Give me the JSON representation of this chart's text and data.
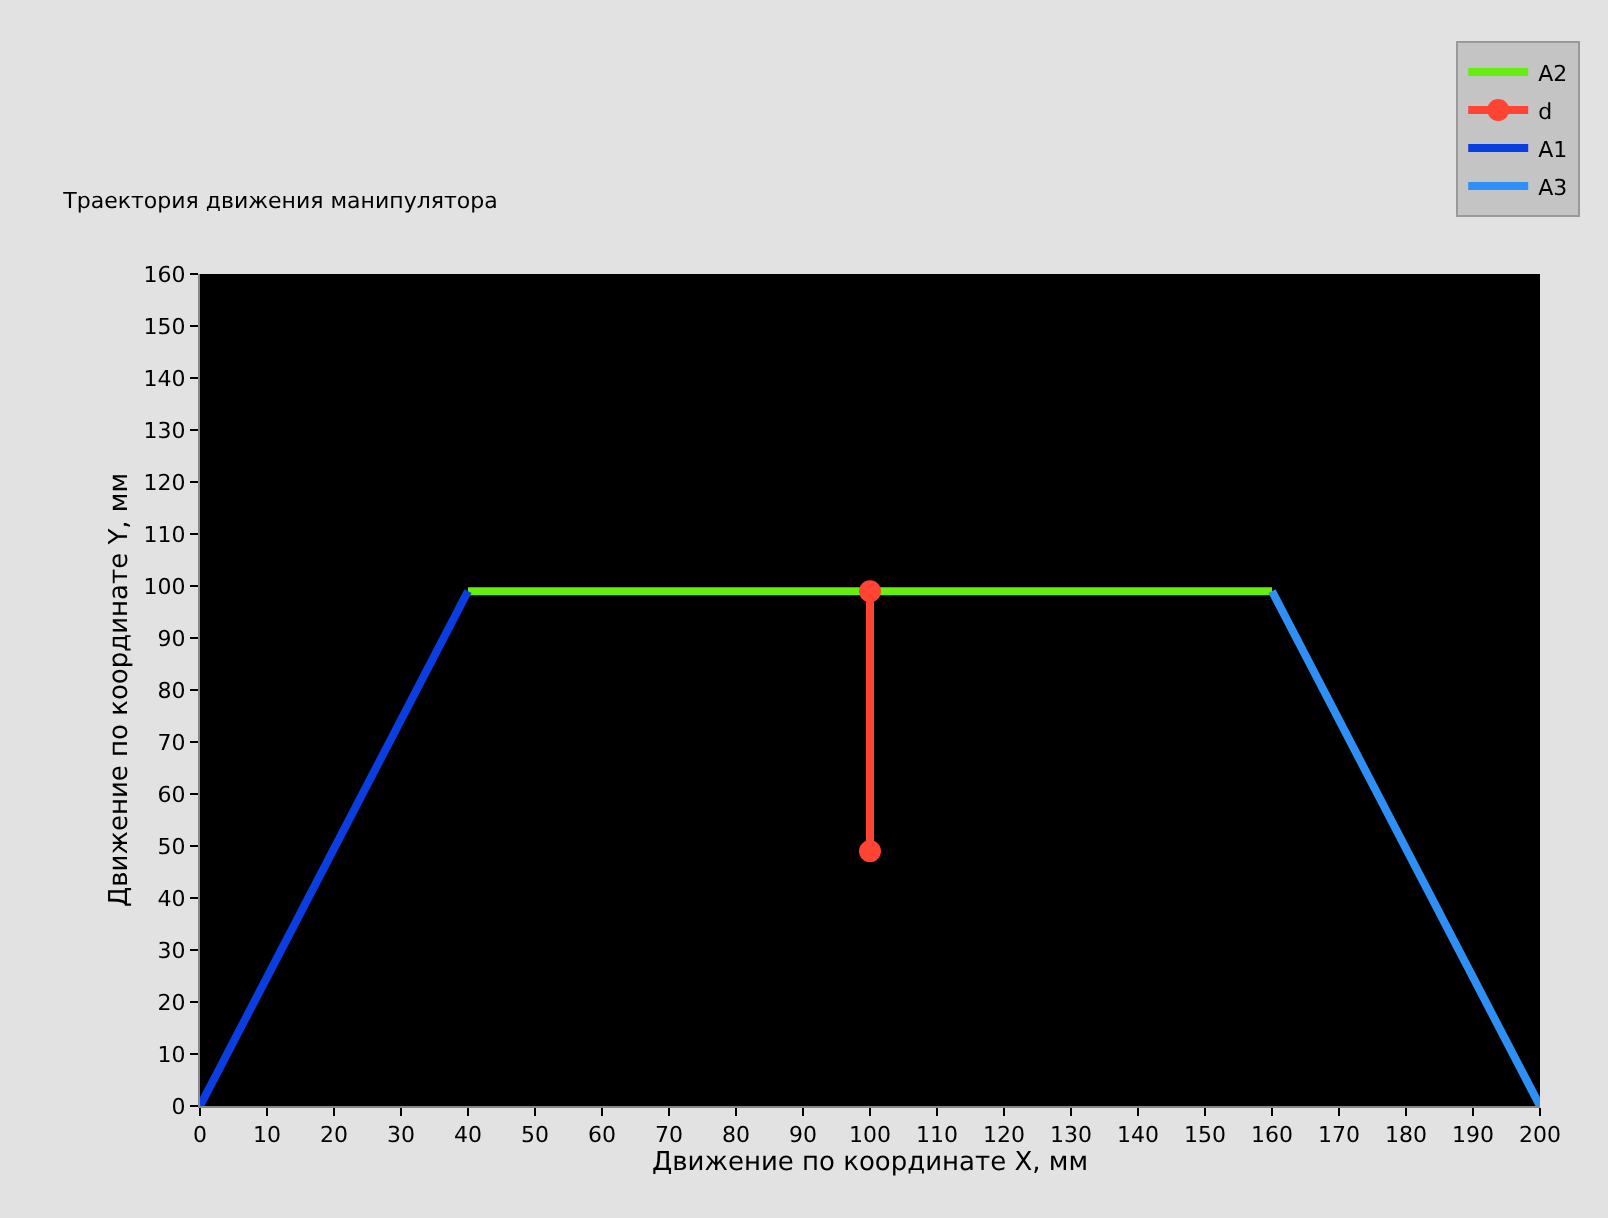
{
  "chart_data": {
    "type": "line",
    "title": "Траектория движения манипулятора",
    "xlabel": "Движение по координате X, мм",
    "ylabel": "Движение по координате Y, мм",
    "series": [
      {
        "name": "A2",
        "color": "#66ee11",
        "x": [
          40,
          160
        ],
        "values": [
          99,
          99
        ],
        "marker": "none"
      },
      {
        "name": "d",
        "color": "#ff4433",
        "x": [
          100,
          100
        ],
        "values": [
          99,
          49
        ],
        "marker": "circle"
      },
      {
        "name": "A1",
        "color": "#0a3ee0",
        "x": [
          0,
          40
        ],
        "values": [
          0,
          99
        ],
        "marker": "none"
      },
      {
        "name": "A3",
        "color": "#2e90f5",
        "x": [
          160,
          200
        ],
        "values": [
          99,
          0
        ],
        "marker": "none"
      }
    ],
    "xlim": [
      0,
      200
    ],
    "xticks": [
      0,
      10,
      20,
      30,
      40,
      50,
      60,
      70,
      80,
      90,
      100,
      110,
      120,
      130,
      140,
      150,
      160,
      170,
      180,
      190,
      200
    ],
    "ylim": [
      0,
      160
    ],
    "yticks": [
      0,
      10,
      20,
      30,
      40,
      50,
      60,
      70,
      80,
      90,
      100,
      110,
      120,
      130,
      140,
      150,
      160
    ],
    "grid": false,
    "legend": "top right",
    "line_style": "solid"
  }
}
